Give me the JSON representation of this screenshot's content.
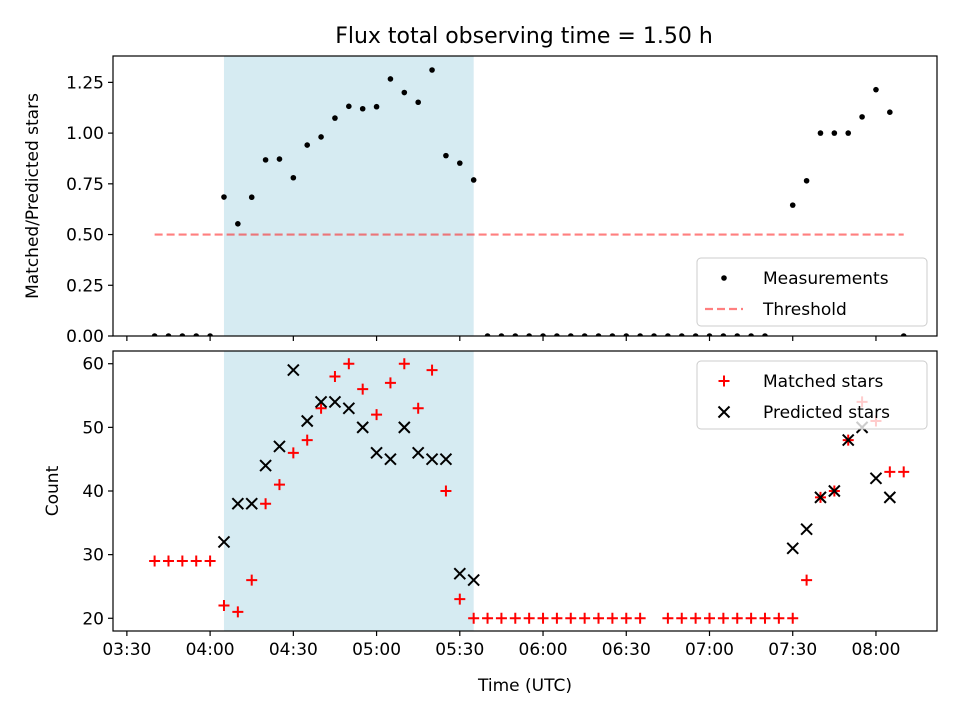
{
  "title": "Flux total observing time = 1.50 h",
  "colors": {
    "highlight": "#add8e6",
    "threshold": "#ff0000",
    "matched": "#ff0000",
    "predicted": "#000000",
    "measurement": "#000000"
  },
  "chart_data": [
    {
      "type": "scatter",
      "title": "Flux total observing time = 1.50 h",
      "xlabel": "",
      "ylabel": "Matched/Predicted stars",
      "xlim": [
        "03:25",
        "08:22"
      ],
      "ylim": [
        0,
        1.38
      ],
      "yticks": [
        "0.00",
        "0.25",
        "0.50",
        "0.75",
        "1.00",
        "1.25"
      ],
      "highlight_span": [
        "04:05",
        "05:35"
      ],
      "legend": {
        "placement": "lower-right",
        "entries": [
          "Measurements",
          "Threshold"
        ]
      },
      "threshold": {
        "name": "Threshold",
        "y": 0.5,
        "x_range": [
          "03:40",
          "08:10"
        ],
        "style": "dashed"
      },
      "series": [
        {
          "name": "Measurements",
          "points": [
            [
              "03:40",
              0
            ],
            [
              "03:45",
              0
            ],
            [
              "03:50",
              0
            ],
            [
              "03:55",
              0
            ],
            [
              "04:00",
              0
            ],
            [
              "04:05",
              0.685
            ],
            [
              "04:10",
              0.553
            ],
            [
              "04:15",
              0.684
            ],
            [
              "04:20",
              0.868
            ],
            [
              "04:25",
              0.872
            ],
            [
              "04:30",
              0.78
            ],
            [
              "04:35",
              0.941
            ],
            [
              "04:40",
              0.981
            ],
            [
              "04:45",
              1.074
            ],
            [
              "04:50",
              1.132
            ],
            [
              "04:55",
              1.12
            ],
            [
              "05:00",
              1.13
            ],
            [
              "05:05",
              1.267
            ],
            [
              "05:10",
              1.2
            ],
            [
              "05:15",
              1.152
            ],
            [
              "05:20",
              1.311
            ],
            [
              "05:25",
              0.889
            ],
            [
              "05:30",
              0.852
            ],
            [
              "05:35",
              0.769
            ],
            [
              "05:40",
              0
            ],
            [
              "05:45",
              0
            ],
            [
              "05:50",
              0
            ],
            [
              "05:55",
              0
            ],
            [
              "06:00",
              0
            ],
            [
              "06:05",
              0
            ],
            [
              "06:10",
              0
            ],
            [
              "06:15",
              0
            ],
            [
              "06:20",
              0
            ],
            [
              "06:25",
              0
            ],
            [
              "06:30",
              0
            ],
            [
              "06:35",
              0
            ],
            [
              "06:40",
              0
            ],
            [
              "06:45",
              0
            ],
            [
              "06:50",
              0
            ],
            [
              "06:55",
              0
            ],
            [
              "07:00",
              0
            ],
            [
              "07:05",
              0
            ],
            [
              "07:10",
              0
            ],
            [
              "07:15",
              0
            ],
            [
              "07:20",
              0
            ],
            [
              "07:30",
              0.645
            ],
            [
              "07:35",
              0.765
            ],
            [
              "07:40",
              1.0
            ],
            [
              "07:45",
              1.0
            ],
            [
              "07:50",
              1.0
            ],
            [
              "07:55",
              1.08
            ],
            [
              "08:00",
              1.214
            ],
            [
              "08:05",
              1.103
            ],
            [
              "08:10",
              0
            ]
          ]
        }
      ]
    },
    {
      "type": "scatter",
      "title": "",
      "xlabel": "Time (UTC)",
      "ylabel": "Count",
      "xlim": [
        "03:25",
        "08:22"
      ],
      "ylim": [
        18,
        62
      ],
      "yticks": [
        "20",
        "30",
        "40",
        "50",
        "60"
      ],
      "xticks": [
        "03:30",
        "04:00",
        "04:30",
        "05:00",
        "05:30",
        "06:00",
        "06:30",
        "07:00",
        "07:30",
        "08:00"
      ],
      "highlight_span": [
        "04:05",
        "05:35"
      ],
      "legend": {
        "placement": "upper-right",
        "entries": [
          "Matched stars",
          "Predicted stars"
        ]
      },
      "series": [
        {
          "name": "Matched stars",
          "marker": "plus",
          "points": [
            [
              "03:40",
              29
            ],
            [
              "03:45",
              29
            ],
            [
              "03:50",
              29
            ],
            [
              "03:55",
              29
            ],
            [
              "04:00",
              29
            ],
            [
              "04:05",
              22
            ],
            [
              "04:10",
              21
            ],
            [
              "04:15",
              26
            ],
            [
              "04:20",
              38
            ],
            [
              "04:25",
              41
            ],
            [
              "04:30",
              46
            ],
            [
              "04:35",
              48
            ],
            [
              "04:40",
              53
            ],
            [
              "04:45",
              58
            ],
            [
              "04:50",
              60
            ],
            [
              "04:55",
              56
            ],
            [
              "05:00",
              52
            ],
            [
              "05:05",
              57
            ],
            [
              "05:10",
              60
            ],
            [
              "05:15",
              53
            ],
            [
              "05:20",
              59
            ],
            [
              "05:25",
              40
            ],
            [
              "05:30",
              23
            ],
            [
              "05:35",
              20
            ],
            [
              "05:40",
              20
            ],
            [
              "05:45",
              20
            ],
            [
              "05:50",
              20
            ],
            [
              "05:55",
              20
            ],
            [
              "06:00",
              20
            ],
            [
              "06:05",
              20
            ],
            [
              "06:10",
              20
            ],
            [
              "06:15",
              20
            ],
            [
              "06:20",
              20
            ],
            [
              "06:25",
              20
            ],
            [
              "06:30",
              20
            ],
            [
              "06:35",
              20
            ],
            [
              "06:45",
              20
            ],
            [
              "06:50",
              20
            ],
            [
              "06:55",
              20
            ],
            [
              "07:00",
              20
            ],
            [
              "07:05",
              20
            ],
            [
              "07:10",
              20
            ],
            [
              "07:15",
              20
            ],
            [
              "07:20",
              20
            ],
            [
              "07:25",
              20
            ],
            [
              "07:30",
              20
            ],
            [
              "07:35",
              26
            ],
            [
              "07:40",
              39
            ],
            [
              "07:45",
              40
            ],
            [
              "07:50",
              48
            ],
            [
              "07:55",
              54
            ],
            [
              "08:00",
              51
            ],
            [
              "08:05",
              43
            ],
            [
              "08:10",
              43
            ]
          ]
        },
        {
          "name": "Predicted stars",
          "marker": "x",
          "points": [
            [
              "04:05",
              32
            ],
            [
              "04:10",
              38
            ],
            [
              "04:15",
              38
            ],
            [
              "04:20",
              44
            ],
            [
              "04:25",
              47
            ],
            [
              "04:30",
              59
            ],
            [
              "04:35",
              51
            ],
            [
              "04:40",
              54
            ],
            [
              "04:45",
              54
            ],
            [
              "04:50",
              53
            ],
            [
              "04:55",
              50
            ],
            [
              "05:00",
              46
            ],
            [
              "05:05",
              45
            ],
            [
              "05:10",
              50
            ],
            [
              "05:15",
              46
            ],
            [
              "05:20",
              45
            ],
            [
              "05:25",
              45
            ],
            [
              "05:30",
              27
            ],
            [
              "05:35",
              26
            ],
            [
              "07:30",
              31
            ],
            [
              "07:35",
              34
            ],
            [
              "07:40",
              39
            ],
            [
              "07:45",
              40
            ],
            [
              "07:50",
              48
            ],
            [
              "07:55",
              50
            ],
            [
              "08:00",
              42
            ],
            [
              "08:05",
              39
            ]
          ]
        }
      ]
    }
  ]
}
